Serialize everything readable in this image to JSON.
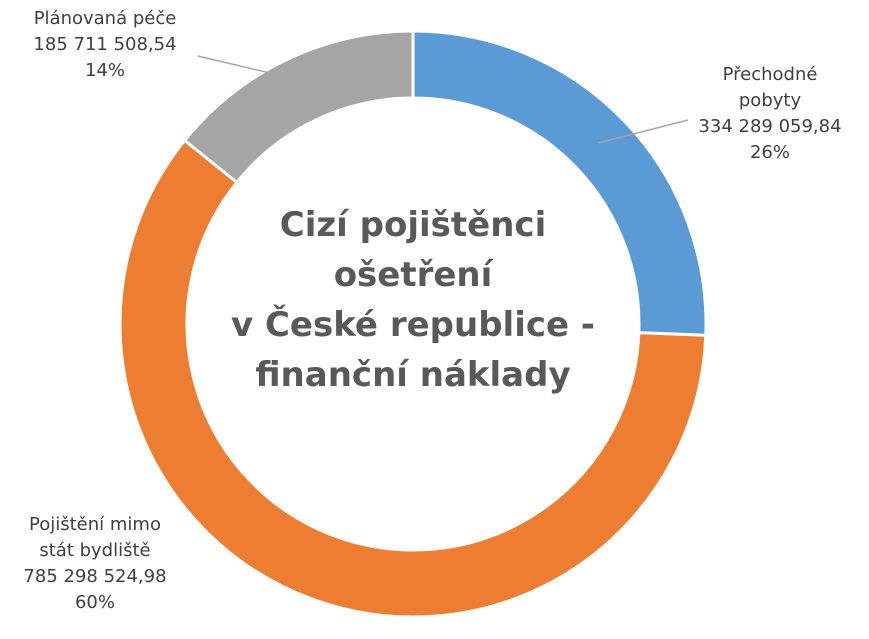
{
  "chart_data": {
    "type": "donut",
    "title": "Cizí pojištěnci\nošetření\nv České republice -\nfinanční náklady",
    "categories": [
      "Přechodné pobyty",
      "Pojištění mimo stát bydliště",
      "Plánovaná péče"
    ],
    "values": [
      334289059.84,
      785298524.98,
      185711508.54
    ],
    "value_labels": [
      "334 289 059,84",
      "785 298 524,98",
      "185 711 508,54"
    ],
    "percents": [
      26,
      60,
      14
    ],
    "percent_labels": [
      "26%",
      "60%",
      "14%"
    ],
    "colors": [
      "#5b9bd5",
      "#ed7d31",
      "#a5a5a5"
    ]
  }
}
